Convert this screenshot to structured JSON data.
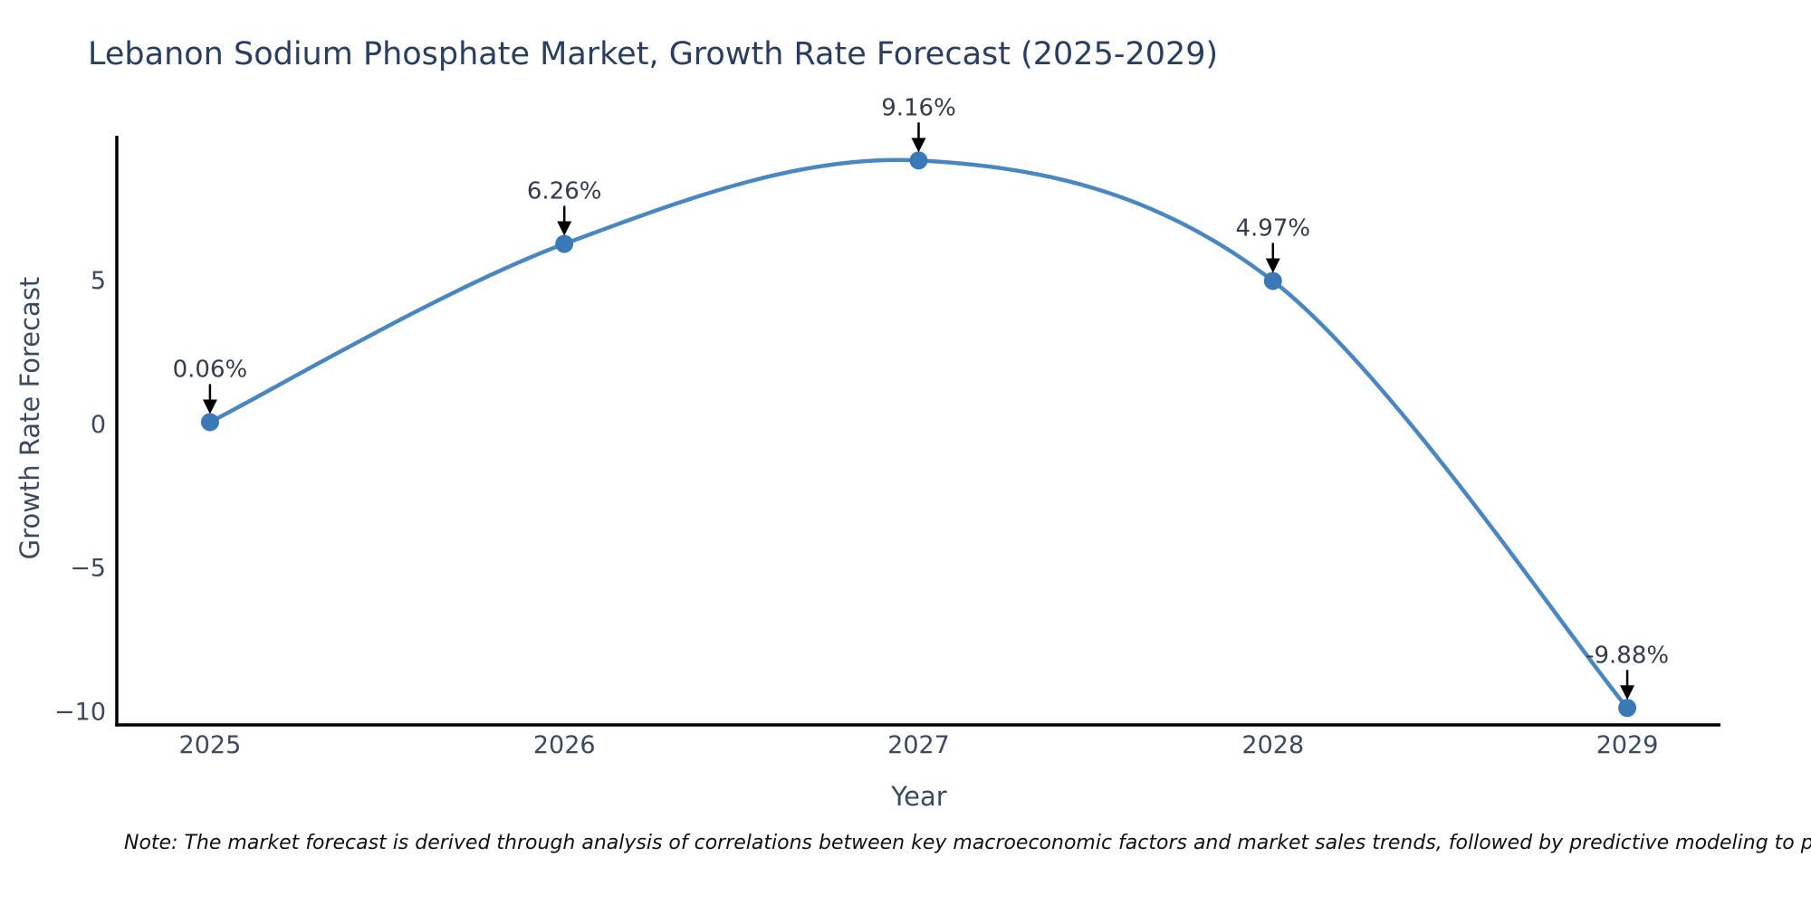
{
  "title": "Lebanon Sodium Phosphate Market, Growth Rate Forecast (2025-2029)",
  "note": "Note: The market forecast is derived through analysis of correlations between key macroeconomic factors and market sales trends, followed by predictive modeling to project future sales",
  "chart_data": {
    "type": "line",
    "title": "Lebanon Sodium Phosphate Market, Growth Rate Forecast (2025-2029)",
    "xlabel": "Year",
    "ylabel": "Growth Rate Forecast",
    "x": [
      2025,
      2026,
      2027,
      2028,
      2029
    ],
    "values": [
      0.06,
      6.26,
      9.16,
      4.97,
      -9.88
    ],
    "point_labels": [
      "0.06%",
      "6.26%",
      "9.16%",
      "4.97%",
      "-9.88%"
    ],
    "xtick_labels": [
      "2025",
      "2026",
      "2027",
      "2028",
      "2029"
    ],
    "ytick_values": [
      5,
      0,
      -5,
      -10
    ],
    "ytick_labels": [
      "5",
      "0",
      "−5",
      "−10"
    ],
    "xlim": [
      2024.737,
      2029.263
    ],
    "ylim": [
      -10.47,
      10.02
    ],
    "grid": false,
    "legend": "none",
    "smooth_curve": true,
    "colors": {
      "line": "#4a87c1",
      "marker": "#3a79b5",
      "spine": "#000000",
      "tick_text": "#3b4a5f",
      "annotation_text": "#343c4a",
      "arrow": "#000000",
      "background": "#ffffff"
    }
  }
}
